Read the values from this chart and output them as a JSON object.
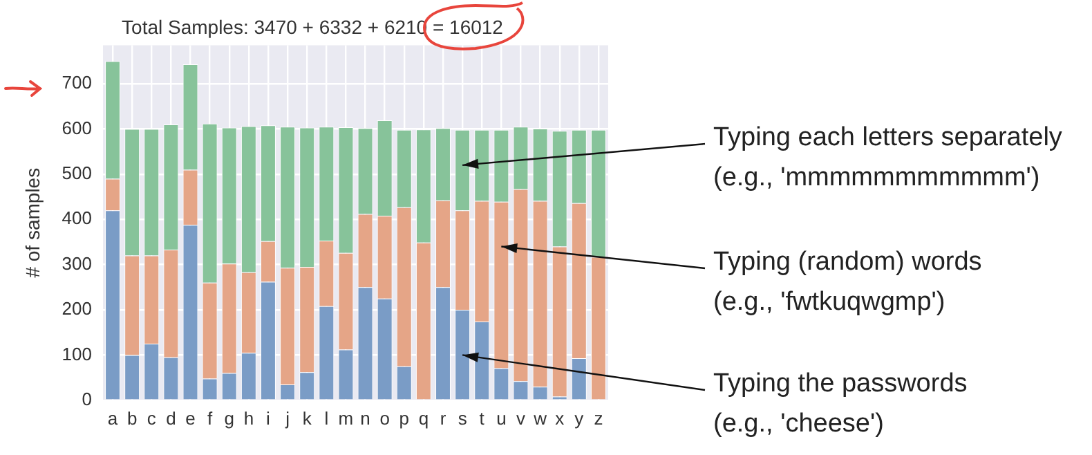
{
  "chart_data": {
    "type": "bar",
    "title": "Total Samples: 3470 + 6332 + 6210 = 16012",
    "ylabel": "# of samples",
    "stacked": true,
    "grid": true,
    "ylim": [
      0,
      785
    ],
    "yticks": [
      0,
      100,
      200,
      300,
      400,
      500,
      600,
      700
    ],
    "categories": [
      "a",
      "b",
      "c",
      "d",
      "e",
      "f",
      "g",
      "h",
      "i",
      "j",
      "k",
      "l",
      "m",
      "n",
      "o",
      "p",
      "q",
      "r",
      "s",
      "t",
      "u",
      "v",
      "w",
      "x",
      "y",
      "z"
    ],
    "series": [
      {
        "color": "#7a9cc6",
        "values": [
          420,
          100,
          125,
          95,
          388,
          48,
          60,
          105,
          262,
          35,
          62,
          208,
          112,
          250,
          225,
          75,
          null,
          250,
          200,
          174,
          71,
          42,
          30,
          8,
          93,
          0
        ]
      },
      {
        "color": "#e5a587",
        "values": [
          70,
          220,
          195,
          238,
          122,
          212,
          242,
          178,
          90,
          258,
          233,
          145,
          214,
          162,
          183,
          352,
          349,
          192,
          220,
          267,
          368,
          425,
          411,
          332,
          343,
          317
        ]
      },
      {
        "color": "#87c39a",
        "values": [
          260,
          280,
          280,
          277,
          233,
          352,
          301,
          323,
          256,
          312,
          308,
          252,
          278,
          190,
          211,
          171,
          250,
          160,
          178,
          157,
          159,
          138,
          160,
          256,
          162,
          281
        ]
      }
    ],
    "annotations": [
      {
        "text": "Typing each letters separately\n(e.g., 'mmmmmmmmmmm')",
        "x": "s",
        "y": 520
      },
      {
        "text": "Typing (random) words\n(e.g., 'fwtkuqwgmp')",
        "x": "u",
        "y": 340
      },
      {
        "text": "Typing the passwords\n(e.g., 'cheese')",
        "x": "s",
        "y": 100
      }
    ]
  }
}
